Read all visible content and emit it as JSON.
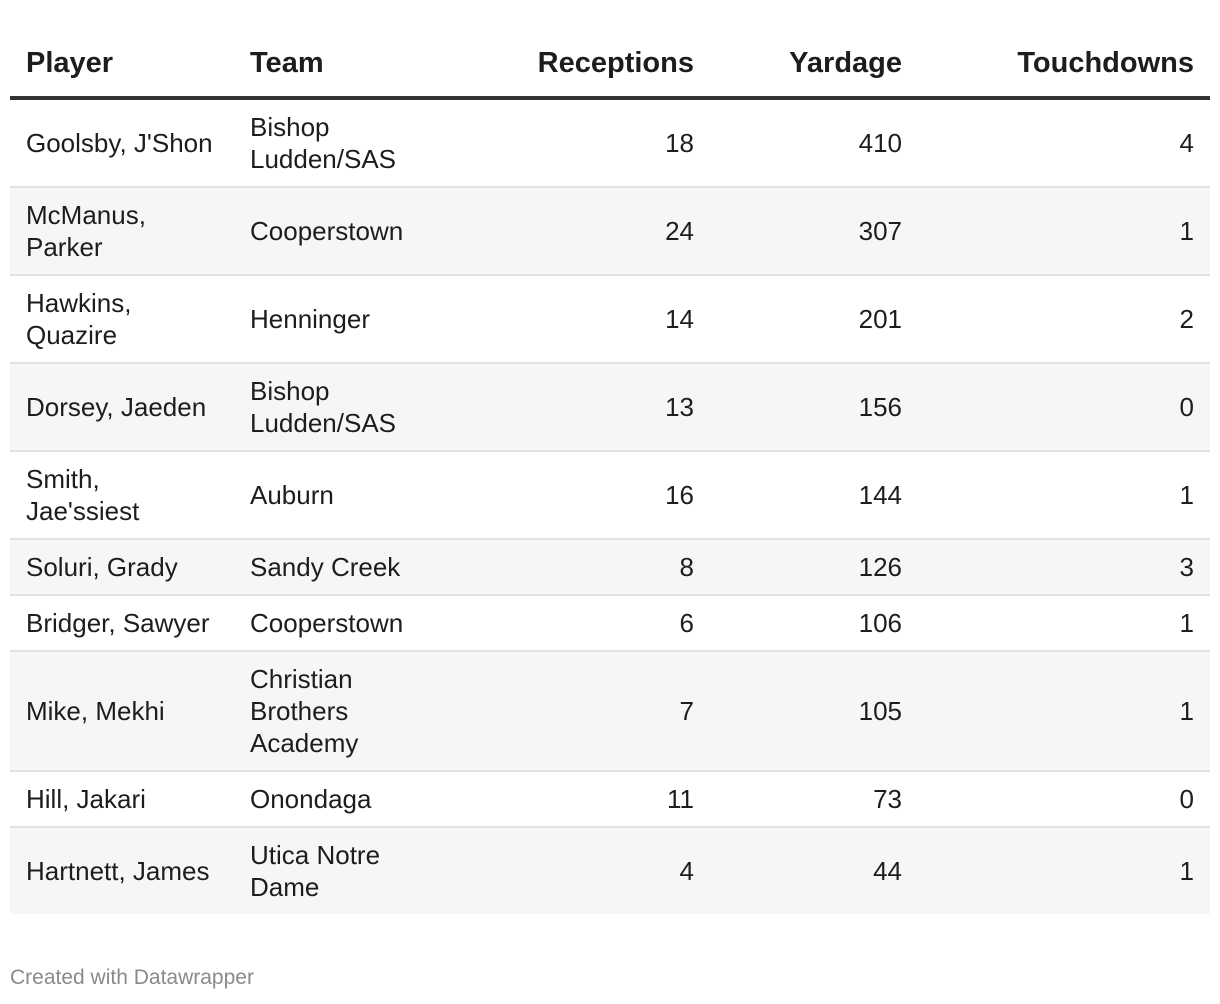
{
  "chart_data": {
    "type": "table",
    "columns": [
      "Player",
      "Team",
      "Receptions",
      "Yardage",
      "Touchdowns"
    ],
    "rows": [
      {
        "player": "Goolsby, J'Shon",
        "team": "Bishop Ludden/SAS",
        "receptions": 18,
        "yardage": 410,
        "touchdowns": 4
      },
      {
        "player": "McManus, Parker",
        "team": "Cooperstown",
        "receptions": 24,
        "yardage": 307,
        "touchdowns": 1
      },
      {
        "player": "Hawkins, Quazire",
        "team": "Henninger",
        "receptions": 14,
        "yardage": 201,
        "touchdowns": 2
      },
      {
        "player": "Dorsey, Jaeden",
        "team": "Bishop Ludden/SAS",
        "receptions": 13,
        "yardage": 156,
        "touchdowns": 0
      },
      {
        "player": "Smith, Jae'ssiest",
        "team": "Auburn",
        "receptions": 16,
        "yardage": 144,
        "touchdowns": 1
      },
      {
        "player": "Soluri, Grady",
        "team": "Sandy Creek",
        "receptions": 8,
        "yardage": 126,
        "touchdowns": 3
      },
      {
        "player": "Bridger, Sawyer",
        "team": "Cooperstown",
        "receptions": 6,
        "yardage": 106,
        "touchdowns": 1
      },
      {
        "player": "Mike, Mekhi",
        "team": "Christian Brothers Academy",
        "receptions": 7,
        "yardage": 105,
        "touchdowns": 1
      },
      {
        "player": "Hill, Jakari",
        "team": "Onondaga",
        "receptions": 11,
        "yardage": 73,
        "touchdowns": 0
      },
      {
        "player": "Hartnett, James",
        "team": "Utica Notre Dame",
        "receptions": 4,
        "yardage": 44,
        "touchdowns": 1
      }
    ]
  },
  "footer": {
    "credit": "Created with Datawrapper"
  },
  "colors": {
    "header_rule": "#333333",
    "row_divider": "#e2e2e2",
    "zebra": "#f6f6f6",
    "footer_text": "#8a8a8a"
  }
}
